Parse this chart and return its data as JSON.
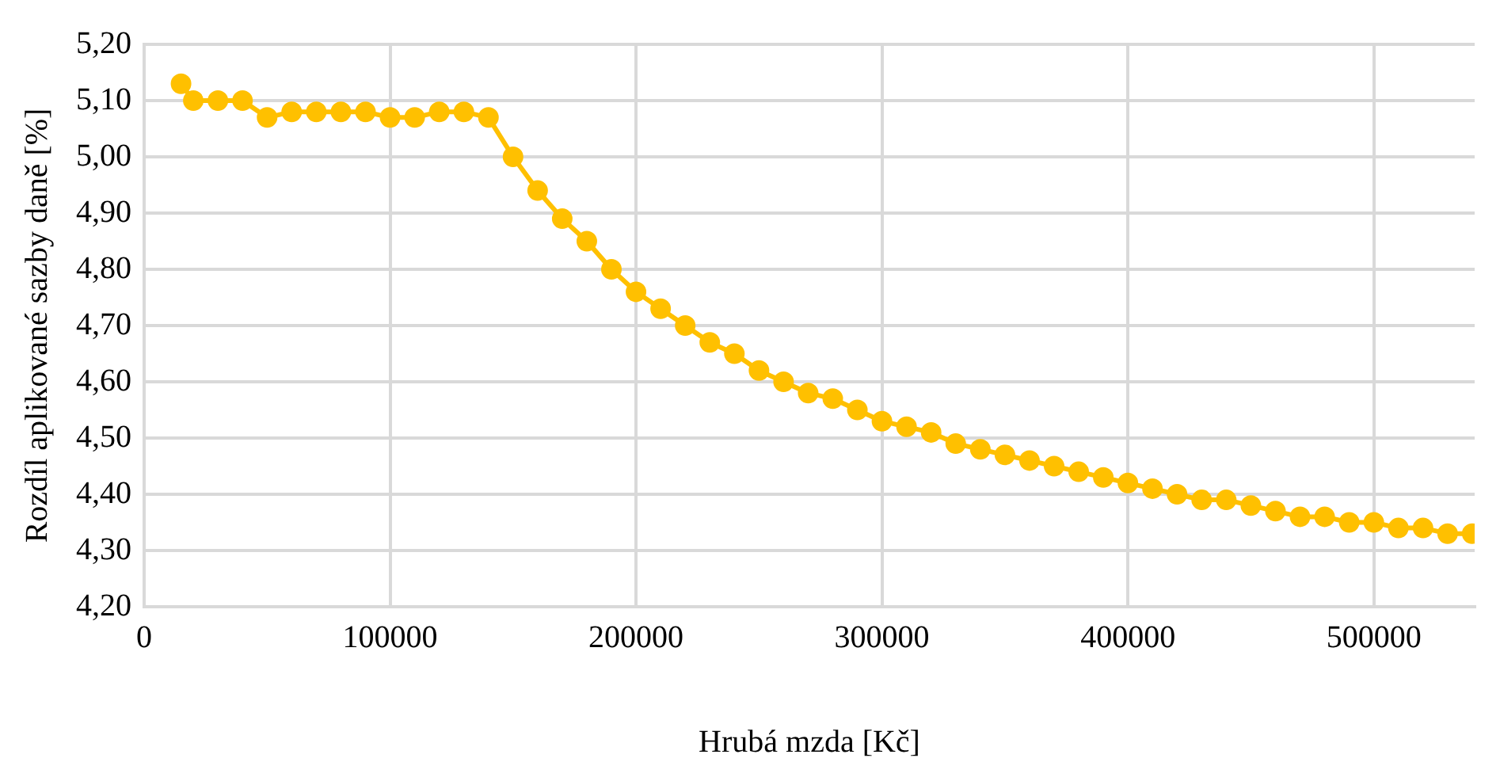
{
  "chart_data": {
    "type": "line",
    "xlabel": "Hrubá mzda [Kč]",
    "ylabel": "Rozdíl aplikované sazby daně [%]",
    "x": [
      15000,
      20000,
      30000,
      40000,
      50000,
      60000,
      70000,
      80000,
      90000,
      100000,
      110000,
      120000,
      130000,
      140000,
      150000,
      160000,
      170000,
      180000,
      190000,
      200000,
      210000,
      220000,
      230000,
      240000,
      250000,
      260000,
      270000,
      280000,
      290000,
      300000,
      310000,
      320000,
      330000,
      340000,
      350000,
      360000,
      370000,
      380000,
      390000,
      400000,
      410000,
      420000,
      430000,
      440000,
      450000,
      460000,
      470000,
      480000,
      490000,
      500000,
      510000,
      520000,
      530000,
      540000
    ],
    "series": [
      {
        "color": "#ffc000",
        "values": [
          5.13,
          5.1,
          5.1,
          5.1,
          5.07,
          5.08,
          5.08,
          5.08,
          5.08,
          5.07,
          5.07,
          5.08,
          5.08,
          5.07,
          5.0,
          4.94,
          4.89,
          4.85,
          4.8,
          4.76,
          4.73,
          4.7,
          4.67,
          4.65,
          4.62,
          4.6,
          4.58,
          4.57,
          4.55,
          4.53,
          4.52,
          4.51,
          4.49,
          4.48,
          4.47,
          4.46,
          4.45,
          4.44,
          4.43,
          4.42,
          4.41,
          4.4,
          4.39,
          4.39,
          4.38,
          4.37,
          4.36,
          4.36,
          4.35,
          4.35,
          4.34,
          4.34,
          4.33,
          4.33
        ]
      }
    ],
    "xlim": [
      0,
      541000
    ],
    "xticks": [
      0,
      100000,
      200000,
      300000,
      400000,
      500000
    ],
    "ylim": [
      4.2,
      5.2
    ],
    "yticks": [
      {
        "value": 4.2,
        "label": "4,20"
      },
      {
        "value": 4.3,
        "label": "4,30"
      },
      {
        "value": 4.4,
        "label": "4,40"
      },
      {
        "value": 4.5,
        "label": "4,50"
      },
      {
        "value": 4.6,
        "label": "4,60"
      },
      {
        "value": 4.7,
        "label": "4,70"
      },
      {
        "value": 4.8,
        "label": "4,80"
      },
      {
        "value": 4.9,
        "label": "4,90"
      },
      {
        "value": 5.0,
        "label": "5,00"
      },
      {
        "value": 5.1,
        "label": "5,10"
      },
      {
        "value": 5.2,
        "label": "5,20"
      }
    ],
    "grid": true,
    "legend": false,
    "marker": "circle",
    "line_style": "solid"
  }
}
